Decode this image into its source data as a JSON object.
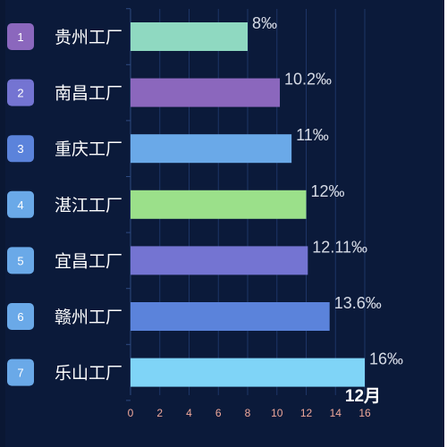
{
  "chart_data": {
    "type": "bar",
    "orientation": "horizontal",
    "categories": [
      "贵州工厂",
      "南昌工厂",
      "重庆工厂",
      "湛江工厂",
      "宜昌工厂",
      "赣州工厂",
      "乐山工厂"
    ],
    "ranks": [
      "1",
      "2",
      "3",
      "4",
      "5",
      "6",
      "7"
    ],
    "values": [
      8,
      10.2,
      11,
      12,
      12.11,
      13.6,
      16
    ],
    "value_labels": [
      "8‰",
      "10.2‰",
      "11‰",
      "12‰",
      "12.11‰",
      "13.6‰",
      "16‰"
    ],
    "bar_colors": [
      "#8fd9c1",
      "#8b67bd",
      "#6aa9e8",
      "#9be08a",
      "#7474d2",
      "#5b83db",
      "#7fd4f7"
    ],
    "badge_colors": [
      "#8b67bd",
      "#7474d2",
      "#5b83db",
      "#6aa9e8",
      "#6aa9e8",
      "#6aa9e8",
      "#6aa9e8"
    ],
    "x_ticks": [
      "0",
      "2",
      "4",
      "6",
      "8",
      "10",
      "12",
      "14",
      "16"
    ],
    "xlim": [
      0,
      16
    ],
    "grid": true,
    "period_label": "12月",
    "title": "",
    "xlabel": "",
    "ylabel": ""
  }
}
